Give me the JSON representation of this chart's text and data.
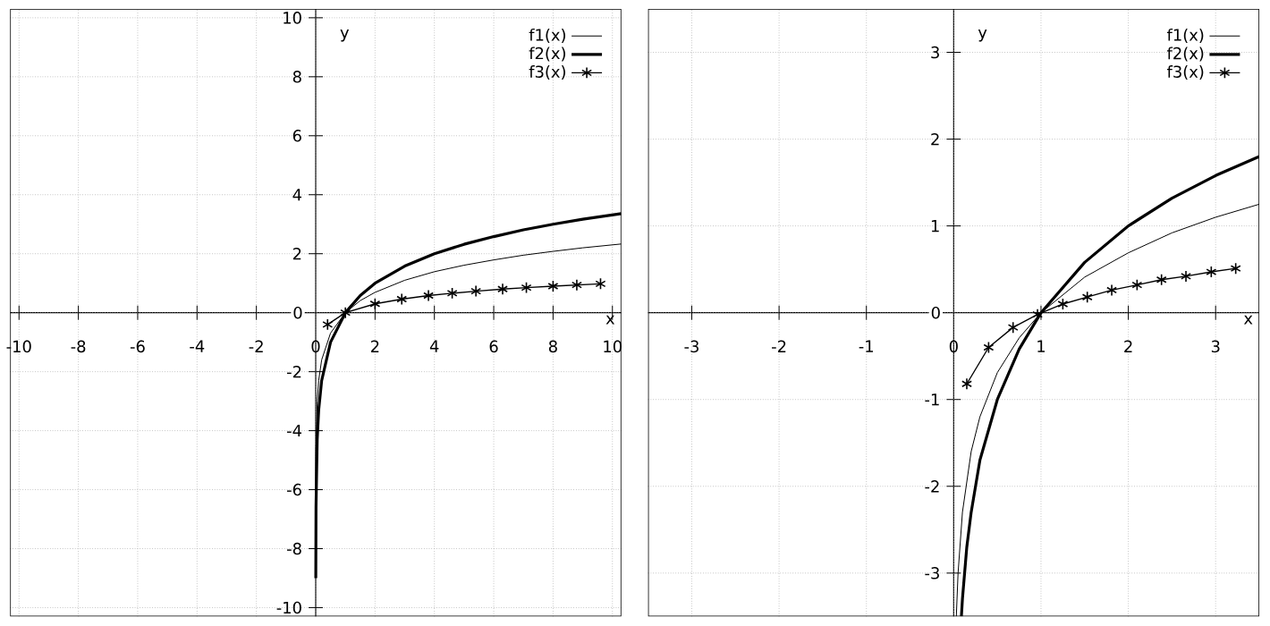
{
  "chart_data": [
    {
      "type": "line",
      "xlabel": "x",
      "ylabel": "y",
      "xlim": [
        -10.3,
        10.3
      ],
      "ylim": [
        -10.3,
        10.3
      ],
      "xticks": [
        -10,
        -8,
        -6,
        -4,
        -2,
        0,
        2,
        4,
        6,
        8,
        10
      ],
      "yticks": [
        -10,
        -8,
        -6,
        -4,
        -2,
        0,
        2,
        4,
        6,
        8,
        10
      ],
      "grid": true,
      "legend": "top right",
      "series": [
        {
          "name": "f1(x)",
          "color": "#000000",
          "marker": "none",
          "x": [
            0.002,
            0.01,
            0.05,
            0.1,
            0.2,
            0.5,
            1,
            1.5,
            2,
            3,
            4,
            5,
            6,
            7,
            8,
            9,
            10.3
          ],
          "values": [
            -6.2,
            -4.6,
            -3,
            -2.3,
            -1.6,
            -0.69,
            0,
            0.41,
            0.69,
            1.1,
            1.39,
            1.61,
            1.79,
            1.95,
            2.08,
            2.2,
            2.33
          ]
        },
        {
          "name": "f2(x)",
          "color": "#000000",
          "marker": "none",
          "x": [
            0.002,
            0.01,
            0.05,
            0.1,
            0.2,
            0.5,
            1,
            1.5,
            2,
            3,
            4,
            5,
            6,
            7,
            8,
            9,
            10.3
          ],
          "values": [
            -9,
            -6.6,
            -4.3,
            -3.3,
            -2.3,
            -1,
            0,
            0.58,
            1,
            1.58,
            2,
            2.32,
            2.58,
            2.81,
            3,
            3.17,
            3.36
          ]
        },
        {
          "name": "f3(x)",
          "color": "#000000",
          "marker": "cross",
          "x": [
            0.4,
            1,
            2,
            2.9,
            3.8,
            4.6,
            5.4,
            6.3,
            7.1,
            8,
            8.8,
            9.6
          ],
          "values": [
            -0.4,
            0,
            0.3,
            0.46,
            0.58,
            0.66,
            0.73,
            0.8,
            0.85,
            0.9,
            0.94,
            0.98
          ]
        }
      ]
    },
    {
      "type": "line",
      "xlabel": "x",
      "ylabel": "y",
      "xlim": [
        -3.5,
        3.5
      ],
      "ylim": [
        -3.5,
        3.5
      ],
      "xticks": [
        -3,
        -2,
        -1,
        0,
        1,
        2,
        3
      ],
      "yticks": [
        -3,
        -2,
        -1,
        0,
        1,
        2,
        3
      ],
      "grid": true,
      "legend": "top right",
      "series": [
        {
          "name": "f1(x)",
          "color": "#000000",
          "marker": "none",
          "x": [
            0.03,
            0.05,
            0.1,
            0.2,
            0.3,
            0.5,
            0.75,
            1,
            1.5,
            2,
            2.5,
            3,
            3.5
          ],
          "values": [
            -3.5,
            -3,
            -2.3,
            -1.6,
            -1.2,
            -0.69,
            -0.29,
            0,
            0.41,
            0.69,
            0.92,
            1.1,
            1.25
          ]
        },
        {
          "name": "f2(x)",
          "color": "#000000",
          "marker": "none",
          "x": [
            0.088,
            0.1,
            0.15,
            0.2,
            0.3,
            0.5,
            0.75,
            1,
            1.5,
            2,
            2.5,
            3,
            3.5
          ],
          "values": [
            -3.5,
            -3.3,
            -2.7,
            -2.3,
            -1.7,
            -1,
            -0.42,
            0,
            0.58,
            1,
            1.32,
            1.58,
            1.8
          ]
        },
        {
          "name": "f3(x)",
          "color": "#000000",
          "marker": "cross",
          "x": [
            0.15,
            0.4,
            0.68,
            0.96,
            1.25,
            1.53,
            1.81,
            2.1,
            2.38,
            2.66,
            2.95,
            3.23
          ],
          "values": [
            -0.82,
            -0.4,
            -0.17,
            -0.02,
            0.1,
            0.18,
            0.26,
            0.32,
            0.38,
            0.42,
            0.47,
            0.51
          ]
        }
      ]
    }
  ]
}
